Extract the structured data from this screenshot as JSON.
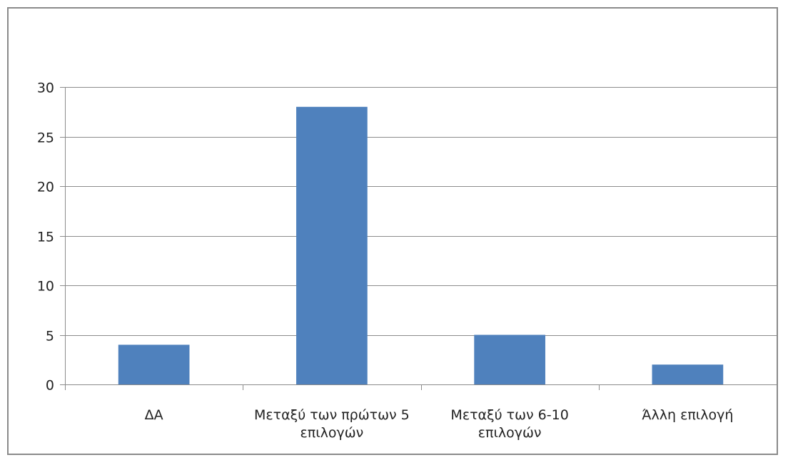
{
  "chart_data": {
    "type": "bar",
    "categories": [
      [
        "ΔΑ"
      ],
      [
        "Μεταξύ των πρώτων 5",
        "επιλογών"
      ],
      [
        "Μεταξύ των 6-10",
        "επιλογών"
      ],
      [
        "Άλλη επιλογή"
      ]
    ],
    "values": [
      4,
      28,
      5,
      2
    ],
    "ylim": [
      0,
      30
    ],
    "yticks": [
      "0",
      "5",
      "10",
      "15",
      "20",
      "25",
      "30"
    ],
    "grid": true,
    "colors": {
      "bar": "#4F81BD",
      "grid": "#8C8C8C",
      "axis": "#8C8C8C",
      "frame": "#8A8A8A"
    }
  }
}
